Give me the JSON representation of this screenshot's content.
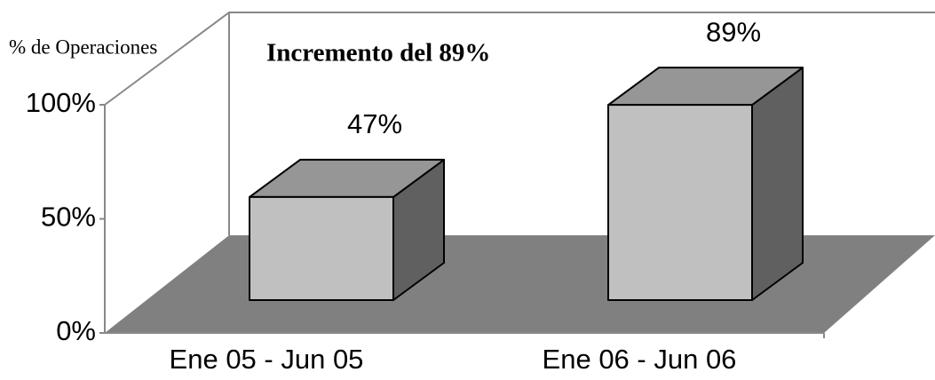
{
  "chart_data": {
    "type": "bar3d",
    "ylabel": "% de Operaciones",
    "annotation": "Incremento del 89%",
    "categories": [
      "Ene 05 - Jun 05",
      "Ene 06 - Jun 06"
    ],
    "values": [
      47,
      89
    ],
    "value_labels": [
      "47%",
      "89%"
    ],
    "ylim": [
      0,
      100
    ],
    "yticks": [
      {
        "value": 0,
        "label": "0%"
      },
      {
        "value": 50,
        "label": "50%"
      },
      {
        "value": 100,
        "label": "100%"
      }
    ],
    "colors": {
      "front": "#c0c0c0",
      "top": "#969696",
      "side": "#606060",
      "floor": "#808080"
    }
  }
}
